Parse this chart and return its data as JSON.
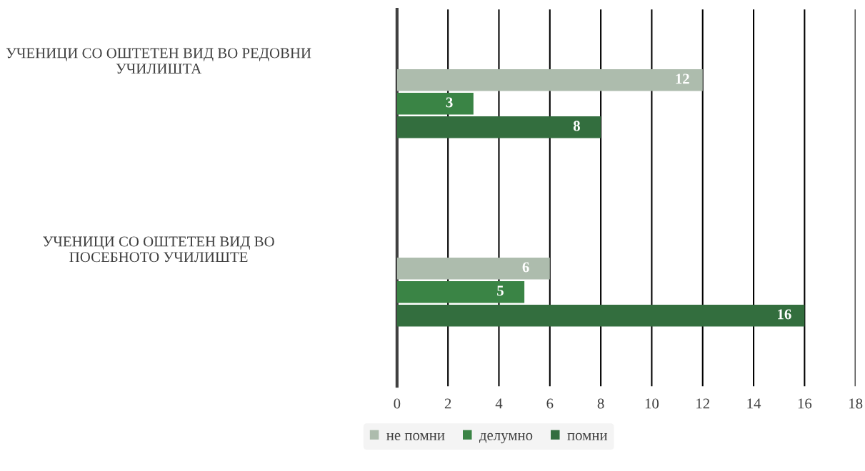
{
  "chart_data": {
    "type": "bar",
    "orientation": "horizontal",
    "categories": [
      "УЧЕНИЦИ СО ОШТЕТЕН ВИД ВО РЕДОВНИ УЧИЛИШТА",
      "УЧЕНИЦИ СО ОШТЕТЕН ВИД ВО ПОСЕБНОТО УЧИЛИШТЕ"
    ],
    "series": [
      {
        "name": "не помни",
        "color": "#adbcad",
        "values": [
          12,
          6
        ]
      },
      {
        "name": "делумно",
        "color": "#3a8445",
        "values": [
          3,
          5
        ]
      },
      {
        "name": "помни",
        "color": "#336e3e",
        "values": [
          8,
          16
        ]
      }
    ],
    "xlim": [
      0,
      18
    ],
    "xticks": [
      0,
      2,
      4,
      6,
      8,
      10,
      12,
      14,
      16,
      18
    ],
    "grid": "x",
    "legend": "bottom",
    "data_labels": true
  }
}
